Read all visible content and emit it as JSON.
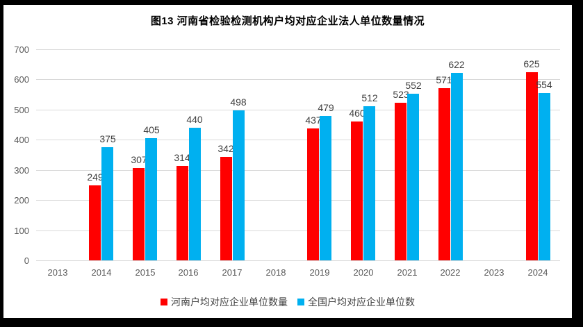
{
  "colors": {
    "frame_background": "#000000",
    "chart_background": "#FFFFFF",
    "gridline": "#D9D9D9",
    "axis_text": "#595959",
    "data_label_text": "#404040",
    "title_text": "#000000",
    "series_henan": "#FF0000",
    "series_national": "#00B0F0"
  },
  "chart_data": {
    "type": "bar",
    "title": "图13 河南省检验检测机构户均对应企业法人单位数量情况",
    "categories": [
      "2013",
      "2014",
      "2015",
      "2016",
      "2017",
      "2018",
      "2019",
      "2020",
      "2021",
      "2022",
      "2023",
      "2024"
    ],
    "series": [
      {
        "name": "河南户均对应企业单位数量",
        "color": "#FF0000",
        "values": [
          null,
          249,
          307,
          314,
          342,
          null,
          437,
          460,
          523,
          571,
          null,
          625
        ]
      },
      {
        "name": "全国户均对应企业单位数",
        "color": "#00B0F0",
        "values": [
          null,
          375,
          405,
          440,
          498,
          null,
          479,
          512,
          552,
          622,
          null,
          554
        ]
      }
    ],
    "xlabel": "",
    "ylabel": "",
    "ylim": [
      0,
      700
    ],
    "ytick_step": 100,
    "yticks": [
      "0",
      "100",
      "200",
      "300",
      "400",
      "500",
      "600",
      "700"
    ],
    "grid": true,
    "data_labels": true,
    "legend_position": "bottom"
  }
}
